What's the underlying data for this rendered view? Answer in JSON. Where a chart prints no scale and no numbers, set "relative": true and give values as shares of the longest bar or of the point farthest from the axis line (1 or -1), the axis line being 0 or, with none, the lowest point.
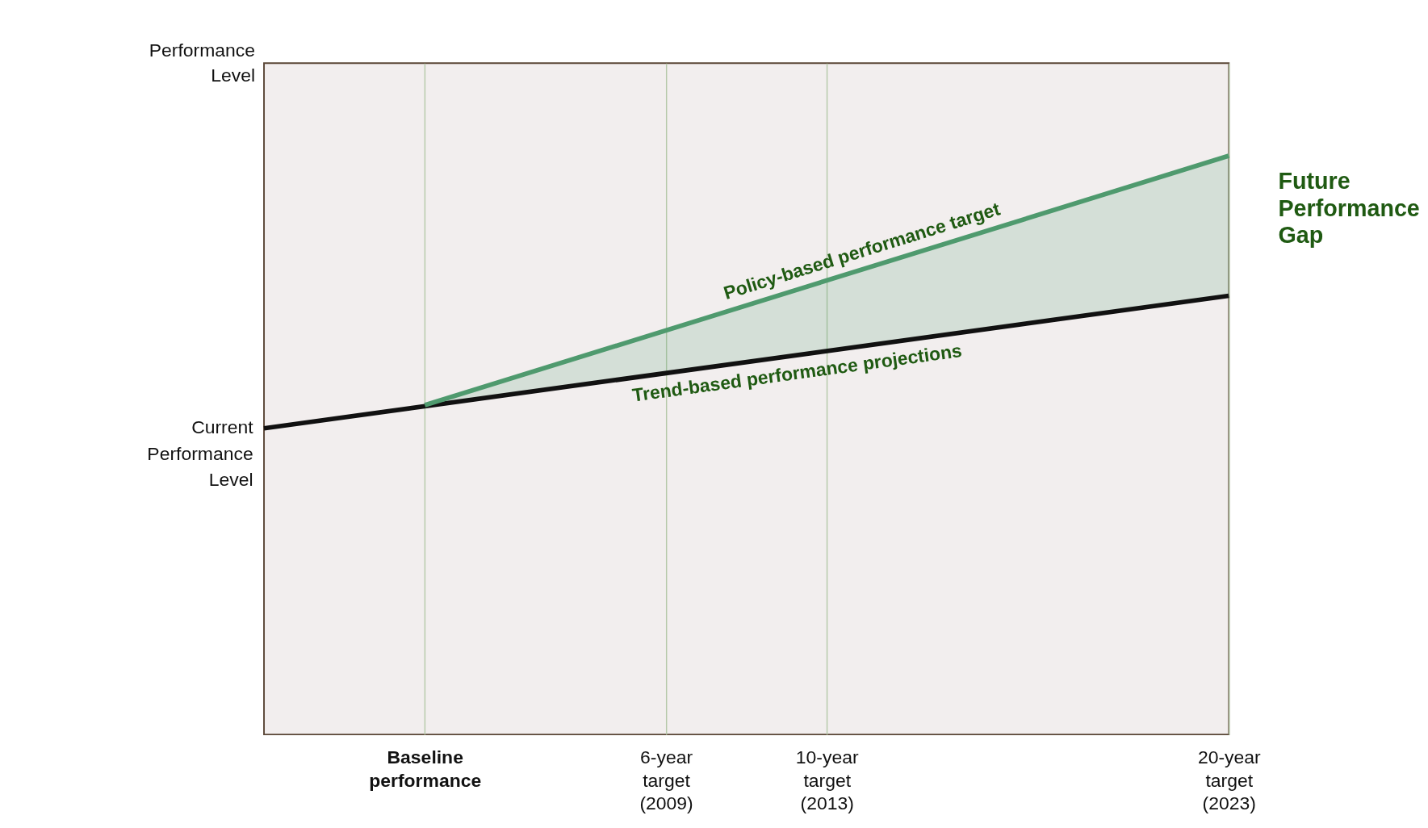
{
  "chart_data": {
    "type": "line",
    "relative": true,
    "ylabel": "Performance Level",
    "categories": [
      null,
      null,
      "Baseline performance",
      null,
      null,
      "6-year target (2009)",
      null,
      "10-year target (2013)",
      null,
      null,
      null,
      null,
      "20-year target (2023)"
    ],
    "grid": "x",
    "marker": "none",
    "line_style": "solid",
    "series": [
      {
        "name": "Trend-based performance projections",
        "color": "#111111",
        "values": [
          0.529,
          null,
          null,
          null,
          null,
          null,
          null,
          null,
          null,
          null,
          null,
          null,
          0.758
        ]
      },
      {
        "name": "Policy-based performance target",
        "color": "#4f9a6e",
        "values": [
          null,
          null,
          0.569,
          null,
          null,
          null,
          null,
          null,
          null,
          null,
          null,
          null,
          1.0
        ],
        "lower": [
          null,
          null,
          0.569,
          null,
          null,
          null,
          null,
          null,
          null,
          null,
          null,
          null,
          0.758
        ],
        "upper": [
          null,
          null,
          0.569,
          null,
          null,
          null,
          null,
          null,
          null,
          null,
          null,
          null,
          1.0
        ]
      }
    ],
    "annotations": [
      "Current Performance Level",
      "Future Performance Gap"
    ]
  }
}
